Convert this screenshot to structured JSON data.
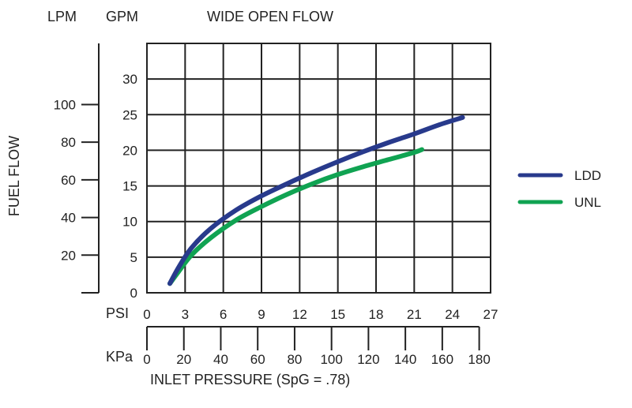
{
  "chart_data": {
    "type": "line",
    "title": "WIDE OPEN FLOW",
    "ylabel": "FUEL FLOW",
    "xlabel": "INLET PRESSURE (SpG = .78)",
    "y_axis_gpm": {
      "unit": "GPM",
      "ticks": [
        0,
        5,
        10,
        15,
        20,
        25,
        30
      ],
      "ylim": [
        0,
        35
      ]
    },
    "y_axis_lpm": {
      "unit": "LPM",
      "ticks": [
        20,
        40,
        60,
        80,
        100
      ]
    },
    "x_axis_psi": {
      "unit": "PSI",
      "ticks": [
        0,
        3,
        6,
        9,
        12,
        15,
        18,
        21,
        24,
        27
      ],
      "xlim": [
        0,
        27
      ]
    },
    "x_axis_kpa": {
      "unit": "KPa",
      "ticks": [
        0,
        20,
        40,
        60,
        80,
        100,
        120,
        140,
        160,
        180
      ]
    },
    "legend_position": "right",
    "grid": true,
    "series": [
      {
        "name": "LDD",
        "color": "#283a8c",
        "x": [
          1.8,
          2.5,
          3.5,
          5,
          7,
          9,
          11,
          13,
          15,
          17,
          19,
          21,
          23,
          24.8
        ],
        "y": [
          1.3,
          3.6,
          6.3,
          9.0,
          11.6,
          13.6,
          15.3,
          16.9,
          18.4,
          19.8,
          21.1,
          22.3,
          23.6,
          24.6
        ]
      },
      {
        "name": "UNL",
        "color": "#10a352",
        "x": [
          1.8,
          2.5,
          3.5,
          5,
          7,
          9,
          11,
          13,
          15,
          17,
          19,
          21,
          21.6
        ],
        "y": [
          1.3,
          3.0,
          5.3,
          7.7,
          10.2,
          12.1,
          13.8,
          15.3,
          16.6,
          17.7,
          18.7,
          19.7,
          20.1
        ]
      }
    ]
  },
  "labels": {
    "lpm": "LPM",
    "gpm": "GPM",
    "psi": "PSI",
    "kpa": "KPa"
  }
}
